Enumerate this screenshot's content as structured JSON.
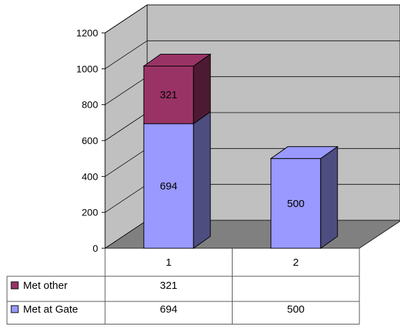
{
  "chart_data": {
    "type": "bar",
    "stacked": true,
    "three_d": true,
    "categories": [
      "1",
      "2"
    ],
    "series": [
      {
        "name": "Met at Gate",
        "values": [
          694,
          500
        ],
        "color": "#9999ff"
      },
      {
        "name": "Met other",
        "values": [
          321,
          null
        ],
        "color": "#993366"
      }
    ],
    "ylim": [
      0,
      1200
    ],
    "yticks": [
      "0",
      "200",
      "400",
      "600",
      "800",
      "1000",
      "1200"
    ],
    "grid": true,
    "legend": "bottom-left data table",
    "data_table": true,
    "wall_color": "#c0c0c0",
    "floor_color": "#808080",
    "title": "",
    "xlabel": "",
    "ylabel": ""
  }
}
